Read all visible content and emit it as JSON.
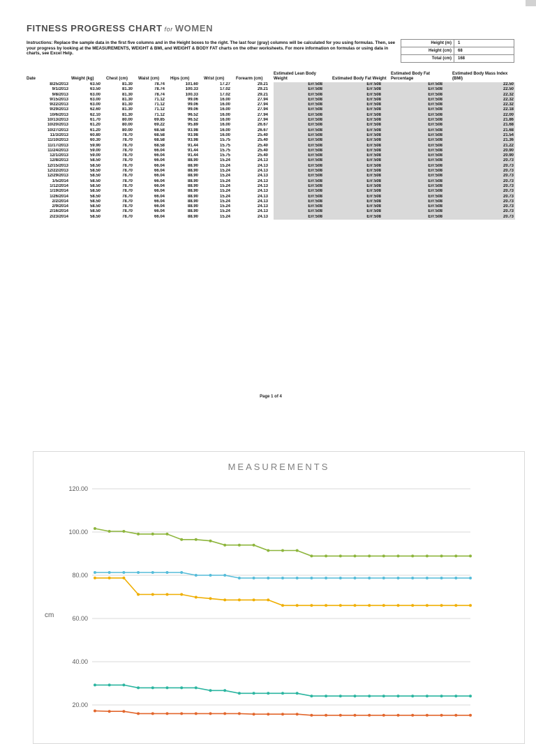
{
  "doc": {
    "title_main": "FITNESS PROGRESS CHART",
    "title_for": "for",
    "title_sub": "WOMEN",
    "instructions": "Instructions: Replace the sample data in the first five columns and in the Height boxes to the right. The last four (gray) columns will be calculated for you using formulas. Then, see your progress by looking at the MEASUREMENTS, WEIGHT & BMI, and WEIGHT & BODY FAT charts on the other worksheets. For more information on formulas or using data in charts, see Excel Help.",
    "page_number": "Page 1 of 4",
    "gray_fill": "#d9d9d9"
  },
  "height_box": {
    "rows": [
      {
        "label": "Height (m)",
        "value": "1"
      },
      {
        "label": "Height (cm)",
        "value": "68"
      },
      {
        "label": "Total (cm)",
        "value": "168"
      }
    ]
  },
  "table": {
    "columns": [
      "Date",
      "Weight (kg)",
      "Chest (cm)",
      "Waist (cm)",
      "Hips (cm)",
      "Wrist (cm)",
      "Forearm (cm)",
      "Estimated Lean Body Weight",
      "Estimated Body Fat Weight",
      "Estimated Body Fat Percentage",
      "Estimated Body Mass Index (BMI)"
    ],
    "rows": [
      [
        "8/25/2013",
        "63.50",
        "81.30",
        "78.74",
        "101.60",
        "17.27",
        "29.21",
        "Err:508",
        "Err:508",
        "Err:508",
        "22.50"
      ],
      [
        "9/1/2013",
        "63.50",
        "81.30",
        "78.74",
        "100.33",
        "17.02",
        "29.21",
        "Err:508",
        "Err:508",
        "Err:508",
        "22.50"
      ],
      [
        "9/8/2013",
        "63.00",
        "81.30",
        "78.74",
        "100.33",
        "17.02",
        "29.21",
        "Err:508",
        "Err:508",
        "Err:508",
        "22.32"
      ],
      [
        "9/15/2013",
        "63.00",
        "81.30",
        "71.12",
        "99.06",
        "16.00",
        "27.94",
        "Err:508",
        "Err:508",
        "Err:508",
        "22.32"
      ],
      [
        "9/22/2013",
        "63.00",
        "81.30",
        "71.12",
        "99.06",
        "16.00",
        "27.94",
        "Err:508",
        "Err:508",
        "Err:508",
        "22.32"
      ],
      [
        "9/29/2013",
        "62.60",
        "81.30",
        "71.12",
        "99.06",
        "16.00",
        "27.94",
        "Err:508",
        "Err:508",
        "Err:508",
        "22.18"
      ],
      [
        "10/6/2013",
        "62.10",
        "81.30",
        "71.12",
        "96.52",
        "16.00",
        "27.94",
        "Err:508",
        "Err:508",
        "Err:508",
        "22.00"
      ],
      [
        "10/13/2013",
        "61.70",
        "80.00",
        "69.85",
        "96.52",
        "16.00",
        "27.94",
        "Err:508",
        "Err:508",
        "Err:508",
        "21.86"
      ],
      [
        "10/20/2013",
        "61.20",
        "80.00",
        "69.22",
        "95.89",
        "16.00",
        "26.67",
        "Err:508",
        "Err:508",
        "Err:508",
        "21.68"
      ],
      [
        "10/27/2013",
        "61.20",
        "80.00",
        "68.58",
        "93.98",
        "16.00",
        "26.67",
        "Err:508",
        "Err:508",
        "Err:508",
        "21.68"
      ],
      [
        "11/3/2013",
        "60.80",
        "78.70",
        "68.58",
        "93.98",
        "16.00",
        "25.40",
        "Err:508",
        "Err:508",
        "Err:508",
        "21.54"
      ],
      [
        "11/10/2013",
        "60.30",
        "78.70",
        "68.58",
        "93.98",
        "15.75",
        "25.40",
        "Err:508",
        "Err:508",
        "Err:508",
        "21.36"
      ],
      [
        "11/17/2013",
        "59.90",
        "78.70",
        "68.58",
        "91.44",
        "15.75",
        "25.40",
        "Err:508",
        "Err:508",
        "Err:508",
        "21.22"
      ],
      [
        "11/24/2013",
        "59.00",
        "78.70",
        "66.04",
        "91.44",
        "15.75",
        "25.40",
        "Err:508",
        "Err:508",
        "Err:508",
        "20.90"
      ],
      [
        "12/1/2013",
        "59.00",
        "78.70",
        "66.04",
        "91.44",
        "15.75",
        "25.40",
        "Err:508",
        "Err:508",
        "Err:508",
        "20.90"
      ],
      [
        "12/8/2013",
        "58.50",
        "78.70",
        "66.04",
        "88.90",
        "15.24",
        "24.13",
        "Err:508",
        "Err:508",
        "Err:508",
        "20.73"
      ],
      [
        "12/15/2013",
        "58.50",
        "78.70",
        "66.04",
        "88.90",
        "15.24",
        "24.13",
        "Err:508",
        "Err:508",
        "Err:508",
        "20.73"
      ],
      [
        "12/22/2013",
        "58.50",
        "78.70",
        "66.04",
        "88.90",
        "15.24",
        "24.13",
        "Err:508",
        "Err:508",
        "Err:508",
        "20.73"
      ],
      [
        "12/29/2013",
        "58.50",
        "78.70",
        "66.04",
        "88.90",
        "15.24",
        "24.13",
        "Err:508",
        "Err:508",
        "Err:508",
        "20.73"
      ],
      [
        "1/5/2014",
        "58.50",
        "78.70",
        "66.04",
        "88.90",
        "15.24",
        "24.13",
        "Err:508",
        "Err:508",
        "Err:508",
        "20.73"
      ],
      [
        "1/12/2014",
        "58.50",
        "78.70",
        "66.04",
        "88.90",
        "15.24",
        "24.13",
        "Err:508",
        "Err:508",
        "Err:508",
        "20.73"
      ],
      [
        "1/19/2014",
        "58.50",
        "78.70",
        "66.04",
        "88.90",
        "15.24",
        "24.13",
        "Err:508",
        "Err:508",
        "Err:508",
        "20.73"
      ],
      [
        "1/26/2014",
        "58.50",
        "78.70",
        "66.04",
        "88.90",
        "15.24",
        "24.13",
        "Err:508",
        "Err:508",
        "Err:508",
        "20.73"
      ],
      [
        "2/2/2014",
        "58.50",
        "78.70",
        "66.04",
        "88.90",
        "15.24",
        "24.13",
        "Err:508",
        "Err:508",
        "Err:508",
        "20.73"
      ],
      [
        "2/9/2014",
        "58.50",
        "78.70",
        "66.04",
        "88.90",
        "15.24",
        "24.13",
        "Err:508",
        "Err:508",
        "Err:508",
        "20.73"
      ],
      [
        "2/16/2014",
        "58.50",
        "78.70",
        "66.04",
        "88.90",
        "15.24",
        "24.13",
        "Err:508",
        "Err:508",
        "Err:508",
        "20.73"
      ],
      [
        "2/23/2014",
        "58.50",
        "78.70",
        "66.04",
        "88.90",
        "15.24",
        "24.13",
        "Err:508",
        "Err:508",
        "Err:508",
        "20.73"
      ]
    ]
  },
  "chart_data": {
    "type": "line",
    "title": "MEASUREMENTS",
    "xlabel": "",
    "ylabel": "cm",
    "ylim": [
      0,
      120
    ],
    "yticks": [
      20,
      40,
      60,
      80,
      100,
      120
    ],
    "ytick_format": "0.00",
    "grid": true,
    "legend_position": "below (not visible in crop)",
    "x": [
      "8/25/2013",
      "9/1/2013",
      "9/8/2013",
      "9/15/2013",
      "9/22/2013",
      "9/29/2013",
      "10/6/2013",
      "10/13/2013",
      "10/20/2013",
      "10/27/2013",
      "11/3/2013",
      "11/10/2013",
      "11/17/2013",
      "11/24/2013",
      "12/1/2013",
      "12/8/2013",
      "12/15/2013",
      "12/22/2013",
      "12/29/2013",
      "1/5/2014",
      "1/12/2014",
      "1/19/2014",
      "1/26/2014",
      "2/2/2014",
      "2/9/2014",
      "2/16/2014",
      "2/23/2014"
    ],
    "series": [
      {
        "name": "Hips (cm)",
        "color": "#8db53c",
        "values": [
          101.6,
          100.33,
          100.33,
          99.06,
          99.06,
          99.06,
          96.52,
          96.52,
          95.89,
          93.98,
          93.98,
          93.98,
          91.44,
          91.44,
          91.44,
          88.9,
          88.9,
          88.9,
          88.9,
          88.9,
          88.9,
          88.9,
          88.9,
          88.9,
          88.9,
          88.9,
          88.9
        ]
      },
      {
        "name": "Chest (cm)",
        "color": "#55bcd9",
        "values": [
          81.3,
          81.3,
          81.3,
          81.3,
          81.3,
          81.3,
          81.3,
          80.0,
          80.0,
          80.0,
          78.7,
          78.7,
          78.7,
          78.7,
          78.7,
          78.7,
          78.7,
          78.7,
          78.7,
          78.7,
          78.7,
          78.7,
          78.7,
          78.7,
          78.7,
          78.7,
          78.7
        ]
      },
      {
        "name": "Waist (cm)",
        "color": "#efae00",
        "values": [
          78.74,
          78.74,
          78.74,
          71.12,
          71.12,
          71.12,
          71.12,
          69.85,
          69.22,
          68.58,
          68.58,
          68.58,
          68.58,
          66.04,
          66.04,
          66.04,
          66.04,
          66.04,
          66.04,
          66.04,
          66.04,
          66.04,
          66.04,
          66.04,
          66.04,
          66.04,
          66.04
        ]
      },
      {
        "name": "Forearm (cm)",
        "color": "#2bb5a0",
        "values": [
          29.21,
          29.21,
          29.21,
          27.94,
          27.94,
          27.94,
          27.94,
          27.94,
          26.67,
          26.67,
          25.4,
          25.4,
          25.4,
          25.4,
          25.4,
          24.13,
          24.13,
          24.13,
          24.13,
          24.13,
          24.13,
          24.13,
          24.13,
          24.13,
          24.13,
          24.13,
          24.13
        ]
      },
      {
        "name": "Wrist (cm)",
        "color": "#e2662c",
        "values": [
          17.27,
          17.02,
          17.02,
          16.0,
          16.0,
          16.0,
          16.0,
          16.0,
          16.0,
          16.0,
          16.0,
          15.75,
          15.75,
          15.75,
          15.75,
          15.24,
          15.24,
          15.24,
          15.24,
          15.24,
          15.24,
          15.24,
          15.24,
          15.24,
          15.24,
          15.24,
          15.24
        ]
      }
    ]
  }
}
